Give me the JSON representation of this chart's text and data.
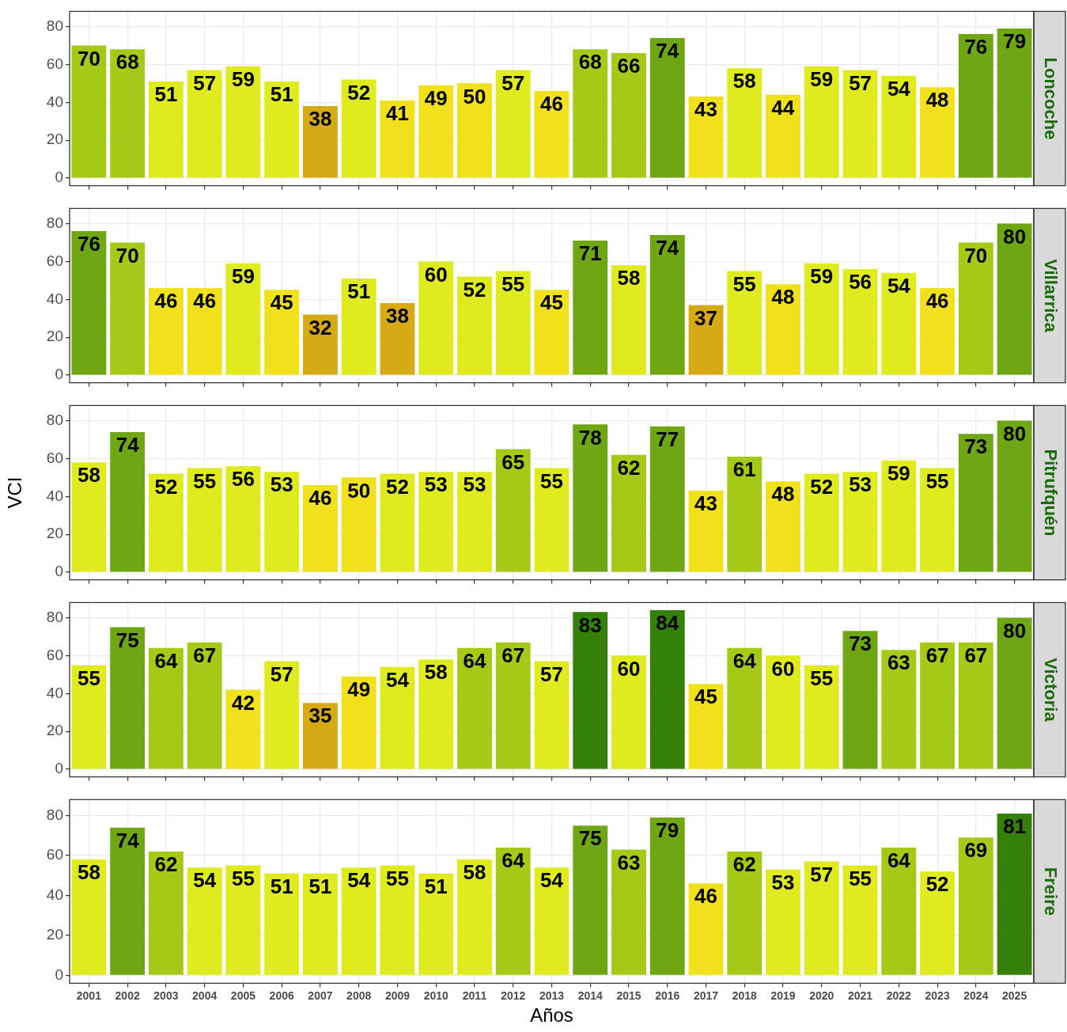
{
  "chart_data": [
    {
      "type": "bar",
      "title": "Loncoche",
      "categories": [
        "2001",
        "2002",
        "2003",
        "2004",
        "2005",
        "2006",
        "2007",
        "2008",
        "2009",
        "2010",
        "2011",
        "2012",
        "2013",
        "2014",
        "2015",
        "2016",
        "2017",
        "2018",
        "2019",
        "2020",
        "2021",
        "2022",
        "2023",
        "2024",
        "2025"
      ],
      "values": [
        70,
        68,
        51,
        57,
        59,
        51,
        38,
        52,
        41,
        49,
        50,
        57,
        46,
        68,
        66,
        74,
        43,
        58,
        44,
        59,
        57,
        54,
        48,
        76,
        79
      ],
      "colors": [
        "#a6c918",
        "#a6c918",
        "#e0eb1f",
        "#e0eb1f",
        "#e0eb1f",
        "#e0eb1f",
        "#d6aa14",
        "#e0eb1f",
        "#f0e11c",
        "#f0e11c",
        "#f0e11c",
        "#e0eb1f",
        "#f0e11c",
        "#a6c918",
        "#a6c918",
        "#6ea713",
        "#f0e11c",
        "#e0eb1f",
        "#f0e11c",
        "#e0eb1f",
        "#e0eb1f",
        "#e0eb1f",
        "#f0e11c",
        "#6ea713",
        "#6ea713"
      ],
      "ylim": [
        -4,
        88
      ],
      "yticks": [
        0,
        20,
        40,
        60,
        80
      ],
      "grid": true,
      "data_labels": true,
      "tick_labels": "y"
    },
    {
      "type": "bar",
      "title": "Villarrica",
      "categories": [
        "2001",
        "2002",
        "2003",
        "2004",
        "2005",
        "2006",
        "2007",
        "2008",
        "2009",
        "2010",
        "2011",
        "2012",
        "2013",
        "2014",
        "2015",
        "2016",
        "2017",
        "2018",
        "2019",
        "2020",
        "2021",
        "2022",
        "2023",
        "2024",
        "2025"
      ],
      "values": [
        76,
        70,
        46,
        46,
        59,
        45,
        32,
        51,
        38,
        60,
        52,
        55,
        45,
        71,
        58,
        74,
        37,
        55,
        48,
        59,
        56,
        54,
        46,
        70,
        80
      ],
      "colors": [
        "#6ea713",
        "#a6c918",
        "#f0e11c",
        "#f0e11c",
        "#e0eb1f",
        "#f0e11c",
        "#d6aa14",
        "#e0eb1f",
        "#d6aa14",
        "#e0eb1f",
        "#e0eb1f",
        "#e0eb1f",
        "#f0e11c",
        "#6ea713",
        "#e0eb1f",
        "#6ea713",
        "#d6aa14",
        "#e0eb1f",
        "#f0e11c",
        "#e0eb1f",
        "#e0eb1f",
        "#e0eb1f",
        "#f0e11c",
        "#a6c918",
        "#6ea713"
      ],
      "ylim": [
        -4,
        88
      ],
      "yticks": [
        0,
        20,
        40,
        60,
        80
      ],
      "grid": true,
      "data_labels": true,
      "tick_labels": "y"
    },
    {
      "type": "bar",
      "title": "Pitrufquén",
      "ylabel": "VCI",
      "categories": [
        "2001",
        "2002",
        "2003",
        "2004",
        "2005",
        "2006",
        "2007",
        "2008",
        "2009",
        "2010",
        "2011",
        "2012",
        "2013",
        "2014",
        "2015",
        "2016",
        "2017",
        "2018",
        "2019",
        "2020",
        "2021",
        "2022",
        "2023",
        "2024",
        "2025"
      ],
      "values": [
        58,
        74,
        52,
        55,
        56,
        53,
        46,
        50,
        52,
        53,
        53,
        65,
        55,
        78,
        62,
        77,
        43,
        61,
        48,
        52,
        53,
        59,
        55,
        73,
        80
      ],
      "colors": [
        "#e0eb1f",
        "#6ea713",
        "#e0eb1f",
        "#e0eb1f",
        "#e0eb1f",
        "#e0eb1f",
        "#f0e11c",
        "#f0e11c",
        "#e0eb1f",
        "#e0eb1f",
        "#e0eb1f",
        "#a6c918",
        "#e0eb1f",
        "#6ea713",
        "#a6c918",
        "#6ea713",
        "#f0e11c",
        "#a6c918",
        "#f0e11c",
        "#e0eb1f",
        "#e0eb1f",
        "#e0eb1f",
        "#e0eb1f",
        "#6ea713",
        "#6ea713"
      ],
      "ylim": [
        -4,
        88
      ],
      "yticks": [
        0,
        20,
        40,
        60,
        80
      ],
      "grid": true,
      "data_labels": true,
      "tick_labels": "y"
    },
    {
      "type": "bar",
      "title": "Victoria",
      "categories": [
        "2001",
        "2002",
        "2003",
        "2004",
        "2005",
        "2006",
        "2007",
        "2008",
        "2009",
        "2010",
        "2011",
        "2012",
        "2013",
        "2014",
        "2015",
        "2016",
        "2017",
        "2018",
        "2019",
        "2020",
        "2021",
        "2022",
        "2023",
        "2024",
        "2025"
      ],
      "values": [
        55,
        75,
        64,
        67,
        42,
        57,
        35,
        49,
        54,
        58,
        64,
        67,
        57,
        83,
        60,
        84,
        45,
        64,
        60,
        55,
        73,
        63,
        67,
        67,
        80
      ],
      "colors": [
        "#e0eb1f",
        "#6ea713",
        "#a6c918",
        "#a6c918",
        "#f0e11c",
        "#e0eb1f",
        "#d6aa14",
        "#f0e11c",
        "#e0eb1f",
        "#e0eb1f",
        "#a6c918",
        "#a6c918",
        "#e0eb1f",
        "#348009",
        "#e0eb1f",
        "#348009",
        "#f0e11c",
        "#a6c918",
        "#e0eb1f",
        "#e0eb1f",
        "#6ea713",
        "#a6c918",
        "#a6c918",
        "#a6c918",
        "#6ea713"
      ],
      "ylim": [
        -4,
        88
      ],
      "yticks": [
        0,
        20,
        40,
        60,
        80
      ],
      "grid": true,
      "data_labels": true,
      "tick_labels": "y"
    },
    {
      "type": "bar",
      "title": "Freire",
      "xlabel": "Años",
      "categories": [
        "2001",
        "2002",
        "2003",
        "2004",
        "2005",
        "2006",
        "2007",
        "2008",
        "2009",
        "2010",
        "2011",
        "2012",
        "2013",
        "2014",
        "2015",
        "2016",
        "2017",
        "2018",
        "2019",
        "2020",
        "2021",
        "2022",
        "2023",
        "2024",
        "2025"
      ],
      "values": [
        58,
        74,
        62,
        54,
        55,
        51,
        51,
        54,
        55,
        51,
        58,
        64,
        54,
        75,
        63,
        79,
        46,
        62,
        53,
        57,
        55,
        64,
        52,
        69,
        81
      ],
      "colors": [
        "#e0eb1f",
        "#6ea713",
        "#a6c918",
        "#e0eb1f",
        "#e0eb1f",
        "#e0eb1f",
        "#e0eb1f",
        "#e0eb1f",
        "#e0eb1f",
        "#e0eb1f",
        "#e0eb1f",
        "#a6c918",
        "#e0eb1f",
        "#6ea713",
        "#a6c918",
        "#6ea713",
        "#f0e11c",
        "#a6c918",
        "#e0eb1f",
        "#e0eb1f",
        "#e0eb1f",
        "#a6c918",
        "#e0eb1f",
        "#a6c918",
        "#348009"
      ],
      "ylim": [
        -4,
        88
      ],
      "yticks": [
        0,
        20,
        40,
        60,
        80
      ],
      "grid": true,
      "data_labels": true
    }
  ]
}
